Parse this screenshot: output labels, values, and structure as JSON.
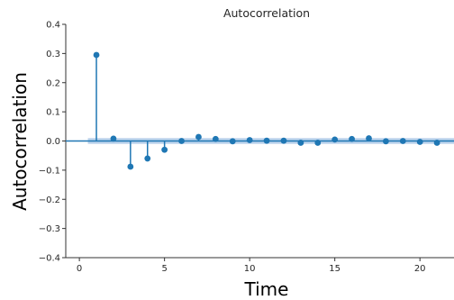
{
  "chart_data": {
    "type": "stem",
    "title": "Autocorrelation",
    "xlabel": "Time",
    "ylabel": "Autocorrelation",
    "xlim": [
      -0.8,
      22
    ],
    "ylim": [
      -0.4,
      0.4
    ],
    "xticks": [
      0,
      5,
      10,
      15,
      20
    ],
    "yticks": [
      -0.4,
      -0.3,
      -0.2,
      -0.1,
      0.0,
      0.1,
      0.2,
      0.3,
      0.4
    ],
    "ytick_labels": [
      "−0.4",
      "−0.3",
      "−0.2",
      "−0.1",
      "0.0",
      "0.1",
      "0.2",
      "0.3",
      "0.4"
    ],
    "grid": false,
    "confidence_band": 0.01,
    "colors": {
      "marker": "#1f77b4",
      "band": "#a6c4e6",
      "axis": "#333333"
    },
    "lags": [
      1,
      2,
      3,
      4,
      5,
      6,
      7,
      8,
      9,
      10,
      11,
      12,
      13,
      14,
      15,
      16,
      17,
      18,
      19,
      20,
      21
    ],
    "values": [
      0.295,
      0.008,
      -0.088,
      -0.06,
      -0.03,
      0.0,
      0.014,
      0.007,
      -0.001,
      0.003,
      0.001,
      0.001,
      -0.006,
      -0.006,
      0.005,
      0.007,
      0.009,
      -0.001,
      0.0,
      -0.003,
      -0.006
    ]
  }
}
